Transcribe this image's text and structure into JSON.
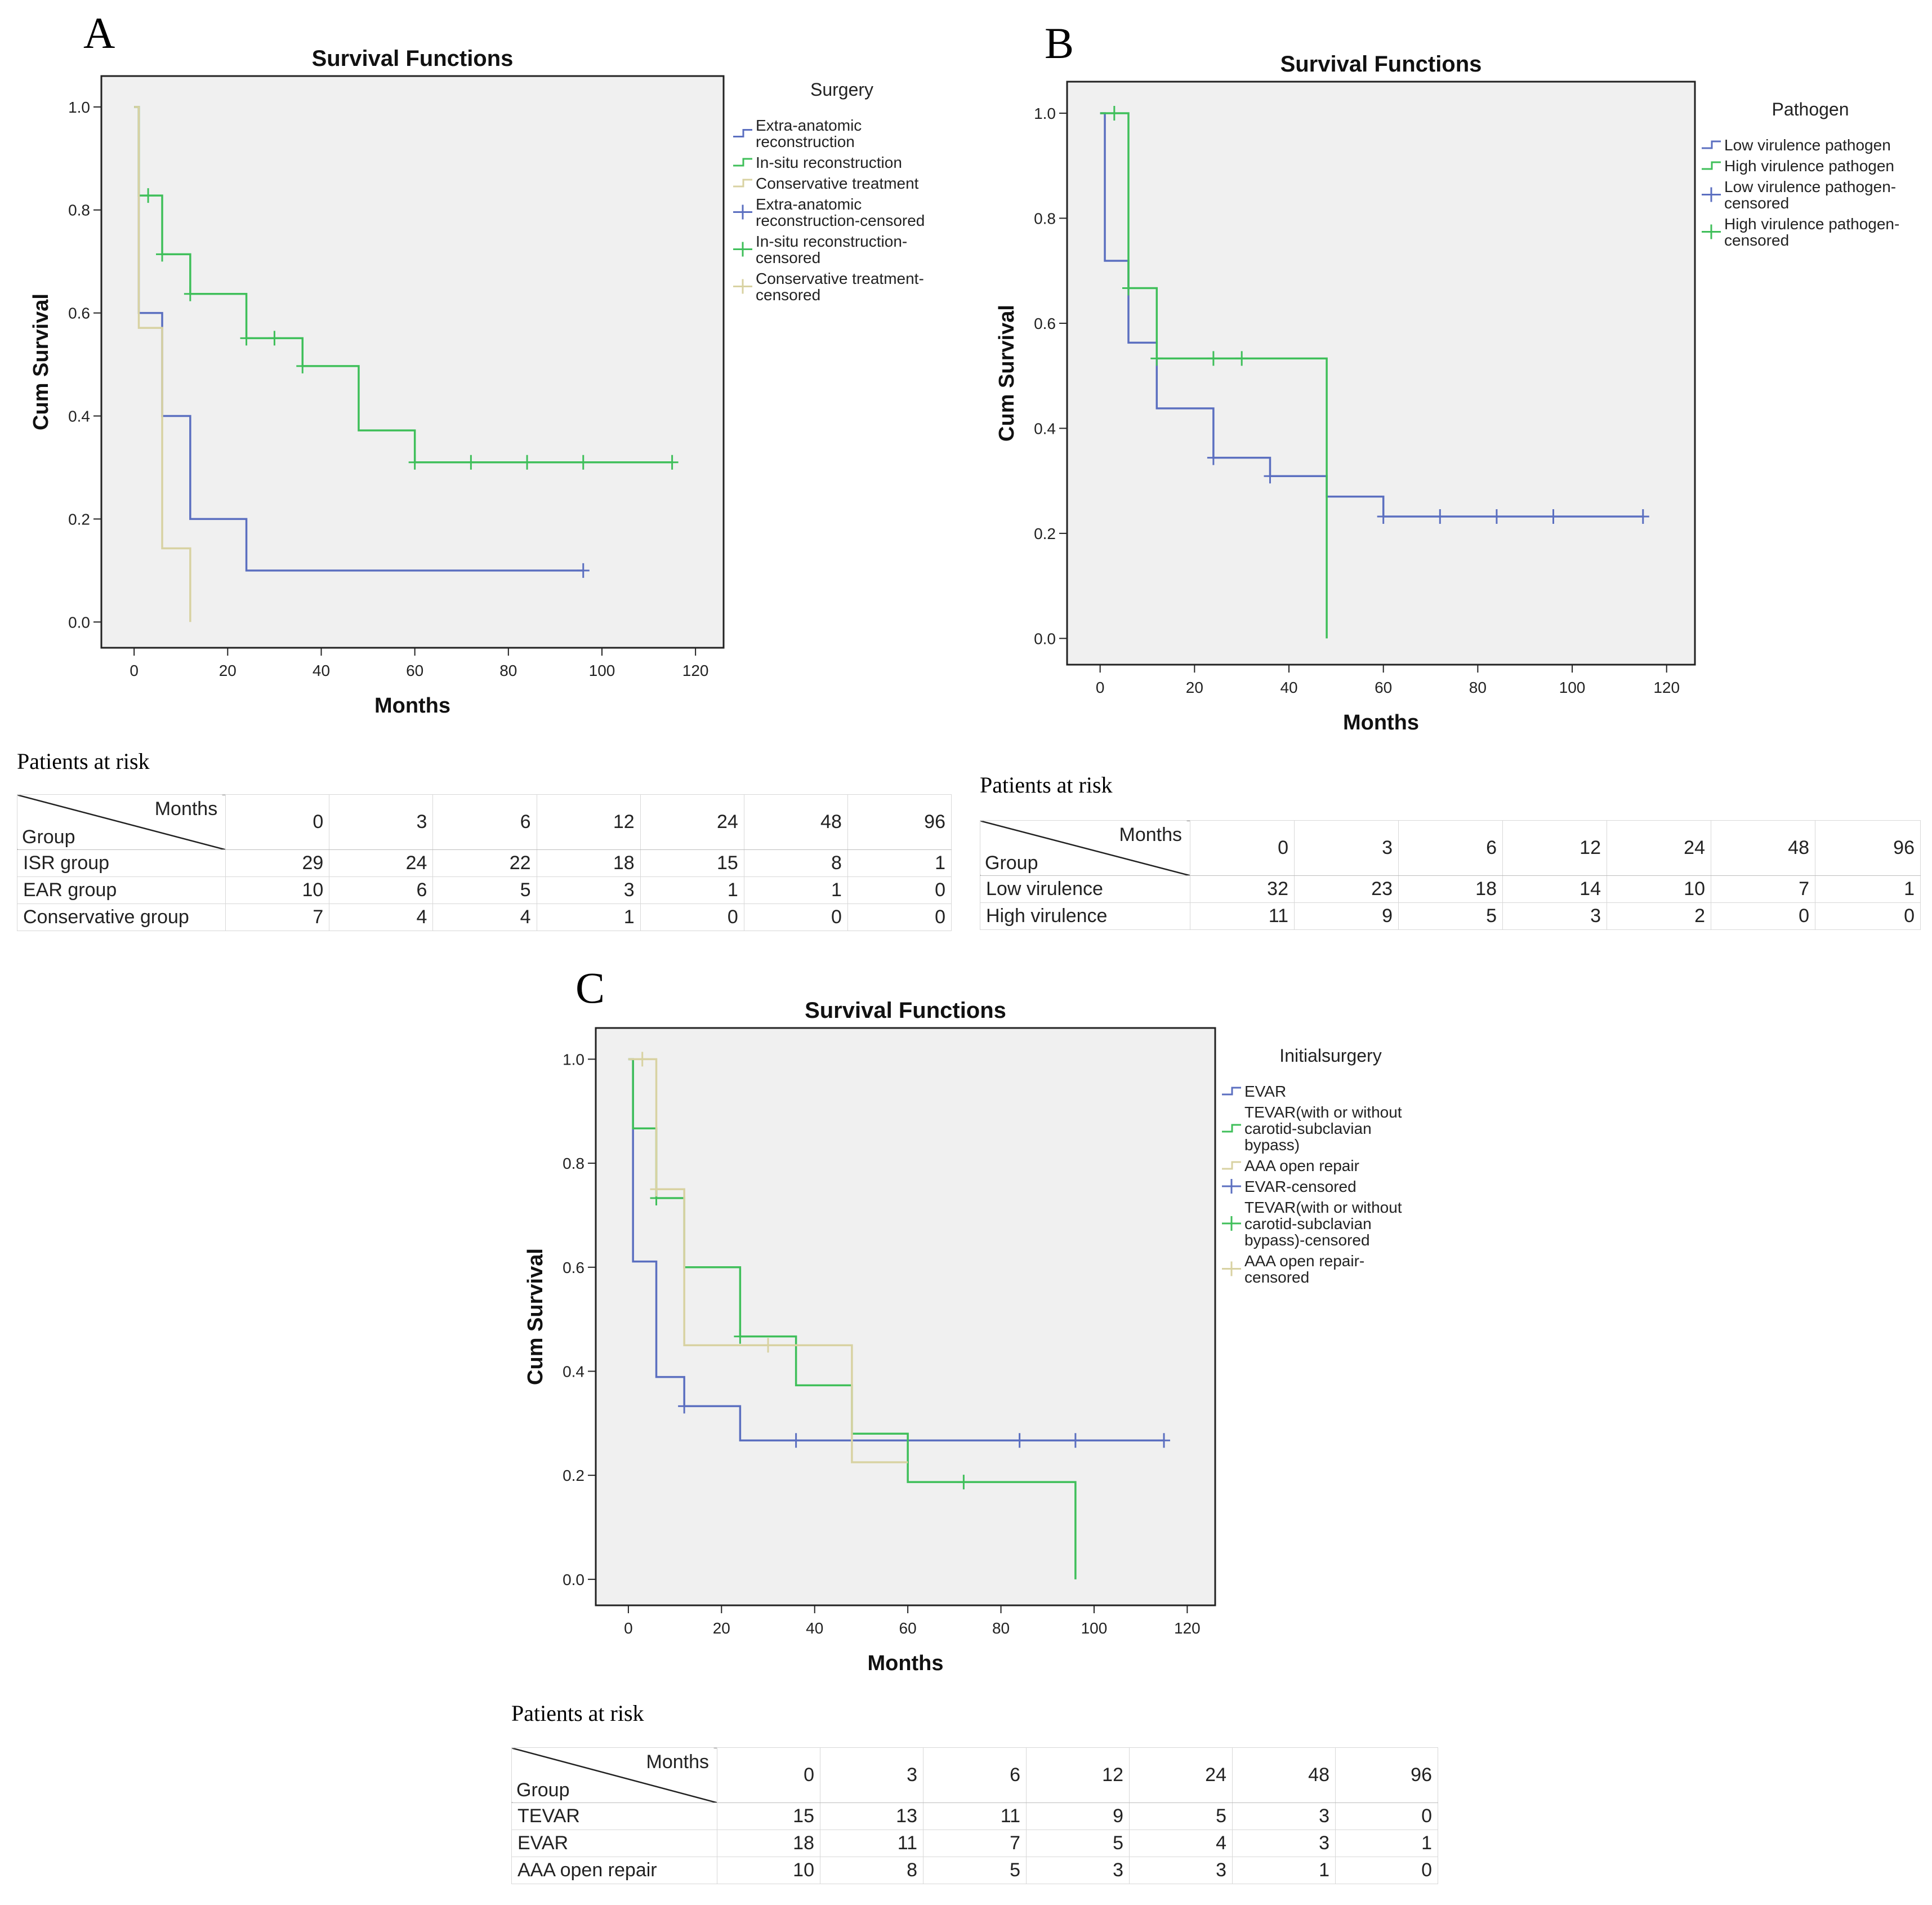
{
  "panels": [
    {
      "letter": "A",
      "risk_title": "Patients at risk",
      "risk_table": {
        "col_label": "Months",
        "row_label": "Group",
        "columns": [
          "0",
          "3",
          "6",
          "12",
          "24",
          "48",
          "96"
        ],
        "rows": [
          {
            "group": "ISR group",
            "values": [
              "29",
              "24",
              "22",
              "18",
              "15",
              "8",
              "1"
            ]
          },
          {
            "group": "EAR group",
            "values": [
              "10",
              "6",
              "5",
              "3",
              "1",
              "1",
              "0"
            ]
          },
          {
            "group": "Conservative group",
            "values": [
              "7",
              "4",
              "4",
              "1",
              "0",
              "0",
              "0"
            ]
          }
        ]
      }
    },
    {
      "letter": "B",
      "risk_title": "Patients at risk",
      "risk_table": {
        "col_label": "Months",
        "row_label": "Group",
        "columns": [
          "0",
          "3",
          "6",
          "12",
          "24",
          "48",
          "96"
        ],
        "rows": [
          {
            "group": "Low virulence",
            "values": [
              "32",
              "23",
              "18",
              "14",
              "10",
              "7",
              "1"
            ]
          },
          {
            "group": "High virulence",
            "values": [
              "11",
              "9",
              "5",
              "3",
              "2",
              "0",
              "0"
            ]
          }
        ]
      }
    },
    {
      "letter": "C",
      "risk_title": "Patients at risk",
      "risk_table": {
        "col_label": "Months",
        "row_label": "Group",
        "columns": [
          "0",
          "3",
          "6",
          "12",
          "24",
          "48",
          "96"
        ],
        "rows": [
          {
            "group": "TEVAR",
            "values": [
              "15",
              "13",
              "11",
              "9",
              "5",
              "3",
              "0"
            ]
          },
          {
            "group": "EVAR",
            "values": [
              "18",
              "11",
              "7",
              "5",
              "4",
              "3",
              "1"
            ]
          },
          {
            "group": "AAA open repair",
            "values": [
              "10",
              "8",
              "5",
              "3",
              "3",
              "1",
              "0"
            ]
          }
        ]
      }
    }
  ],
  "chart_data": [
    {
      "type": "line",
      "subtype": "kaplan-meier-step",
      "title": "Survival Functions",
      "xlabel": "Months",
      "ylabel": "Cum Survival",
      "xlim": [
        -7,
        126
      ],
      "ylim": [
        -0.05,
        1.06
      ],
      "xticks": [
        0,
        20,
        40,
        60,
        80,
        100,
        120
      ],
      "yticks": [
        0.0,
        0.2,
        0.4,
        0.6,
        0.8,
        1.0
      ],
      "legend_title": "Surgery",
      "legend": [
        {
          "label": [
            "Extra-anatomic",
            "reconstruction"
          ],
          "kind": "line",
          "series": 0
        },
        {
          "label": [
            "In-situ reconstruction"
          ],
          "kind": "line",
          "series": 1
        },
        {
          "label": [
            "Conservative treatment"
          ],
          "kind": "line",
          "series": 2
        },
        {
          "label": [
            "Extra-anatomic",
            "reconstruction-censored"
          ],
          "kind": "censor",
          "series": 0
        },
        {
          "label": [
            "In-situ reconstruction-",
            "censored"
          ],
          "kind": "censor",
          "series": 1
        },
        {
          "label": [
            "Conservative treatment-",
            "censored"
          ],
          "kind": "censor",
          "series": 2
        }
      ],
      "series": [
        {
          "name": "Extra-anatomic reconstruction",
          "color": "#5b6fc0",
          "steps": [
            [
              0,
              1.0
            ],
            [
              1,
              0.6
            ],
            [
              6,
              0.4
            ],
            [
              12,
              0.2
            ],
            [
              24,
              0.1
            ],
            [
              96,
              0.1
            ]
          ],
          "censored": [
            [
              96,
              0.1
            ]
          ]
        },
        {
          "name": "In-situ reconstruction",
          "color": "#3fbf5a",
          "steps": [
            [
              0,
              1.0
            ],
            [
              1,
              0.828
            ],
            [
              6,
              0.714
            ],
            [
              12,
              0.637
            ],
            [
              24,
              0.551
            ],
            [
              36,
              0.497
            ],
            [
              48,
              0.372
            ],
            [
              60,
              0.31
            ],
            [
              115,
              0.31
            ]
          ],
          "censored": [
            [
              3,
              0.828
            ],
            [
              6,
              0.714
            ],
            [
              12,
              0.637
            ],
            [
              24,
              0.551
            ],
            [
              30,
              0.551
            ],
            [
              36,
              0.497
            ],
            [
              60,
              0.31
            ],
            [
              72,
              0.31
            ],
            [
              84,
              0.31
            ],
            [
              96,
              0.31
            ],
            [
              115,
              0.31
            ]
          ]
        },
        {
          "name": "Conservative treatment",
          "color": "#d8d2a2",
          "steps": [
            [
              0,
              1.0
            ],
            [
              1,
              0.571
            ],
            [
              6,
              0.143
            ],
            [
              12,
              0.0
            ]
          ],
          "censored": []
        }
      ]
    },
    {
      "type": "line",
      "subtype": "kaplan-meier-step",
      "title": "Survival Functions",
      "xlabel": "Months",
      "ylabel": "Cum Survival",
      "xlim": [
        -7,
        126
      ],
      "ylim": [
        -0.05,
        1.06
      ],
      "xticks": [
        0,
        20,
        40,
        60,
        80,
        100,
        120
      ],
      "yticks": [
        0.0,
        0.2,
        0.4,
        0.6,
        0.8,
        1.0
      ],
      "legend_title": "Pathogen",
      "legend": [
        {
          "label": [
            "Low virulence pathogen"
          ],
          "kind": "line",
          "series": 0
        },
        {
          "label": [
            "High virulence pathogen"
          ],
          "kind": "line",
          "series": 1
        },
        {
          "label": [
            "Low virulence pathogen-",
            "censored"
          ],
          "kind": "censor",
          "series": 0
        },
        {
          "label": [
            "High virulence pathogen-",
            "censored"
          ],
          "kind": "censor",
          "series": 1
        }
      ],
      "series": [
        {
          "name": "Low virulence pathogen",
          "color": "#5b6fc0",
          "steps": [
            [
              0,
              1.0
            ],
            [
              1,
              0.719
            ],
            [
              6,
              0.563
            ],
            [
              12,
              0.438
            ],
            [
              24,
              0.344
            ],
            [
              36,
              0.309
            ],
            [
              48,
              0.27
            ],
            [
              60,
              0.232
            ],
            [
              115,
              0.232
            ]
          ],
          "censored": [
            [
              24,
              0.344
            ],
            [
              36,
              0.309
            ],
            [
              60,
              0.232
            ],
            [
              72,
              0.232
            ],
            [
              84,
              0.232
            ],
            [
              96,
              0.232
            ],
            [
              115,
              0.232
            ]
          ]
        },
        {
          "name": "High virulence pathogen",
          "color": "#3fbf5a",
          "steps": [
            [
              0,
              1.0
            ],
            [
              6,
              0.667
            ],
            [
              12,
              0.533
            ],
            [
              48,
              0.533
            ],
            [
              48,
              0.0
            ]
          ],
          "censored": [
            [
              3,
              1.0
            ],
            [
              6,
              0.667
            ],
            [
              12,
              0.533
            ],
            [
              24,
              0.533
            ],
            [
              30,
              0.533
            ]
          ]
        }
      ]
    },
    {
      "type": "line",
      "subtype": "kaplan-meier-step",
      "title": "Survival Functions",
      "xlabel": "Months",
      "ylabel": "Cum Survival",
      "xlim": [
        -7,
        126
      ],
      "ylim": [
        -0.05,
        1.06
      ],
      "xticks": [
        0,
        20,
        40,
        60,
        80,
        100,
        120
      ],
      "yticks": [
        0.0,
        0.2,
        0.4,
        0.6,
        0.8,
        1.0
      ],
      "legend_title": "Initialsurgery",
      "legend": [
        {
          "label": [
            "EVAR"
          ],
          "kind": "line",
          "series": 0
        },
        {
          "label": [
            "TEVAR(with or without",
            "carotid-subclavian",
            "bypass)"
          ],
          "kind": "line",
          "series": 1
        },
        {
          "label": [
            "AAA open repair"
          ],
          "kind": "line",
          "series": 2
        },
        {
          "label": [
            "EVAR-censored"
          ],
          "kind": "censor",
          "series": 0
        },
        {
          "label": [
            "TEVAR(with or without",
            "carotid-subclavian",
            "bypass)-censored"
          ],
          "kind": "censor",
          "series": 1
        },
        {
          "label": [
            "AAA open repair-",
            "censored"
          ],
          "kind": "censor",
          "series": 2
        }
      ],
      "series": [
        {
          "name": "EVAR",
          "color": "#5b6fc0",
          "steps": [
            [
              0,
              1.0
            ],
            [
              1,
              0.611
            ],
            [
              6,
              0.389
            ],
            [
              12,
              0.333
            ],
            [
              24,
              0.267
            ],
            [
              115,
              0.267
            ]
          ],
          "censored": [
            [
              12,
              0.333
            ],
            [
              36,
              0.267
            ],
            [
              84,
              0.267
            ],
            [
              96,
              0.267
            ],
            [
              115,
              0.267
            ]
          ]
        },
        {
          "name": "TEVAR(with or without carotid-subclavian bypass)",
          "color": "#3fbf5a",
          "steps": [
            [
              0,
              1.0
            ],
            [
              1,
              0.867
            ],
            [
              6,
              0.733
            ],
            [
              12,
              0.6
            ],
            [
              24,
              0.467
            ],
            [
              36,
              0.373
            ],
            [
              48,
              0.28
            ],
            [
              60,
              0.187
            ],
            [
              96,
              0.187
            ],
            [
              96,
              0.0
            ]
          ],
          "censored": [
            [
              6,
              0.733
            ],
            [
              24,
              0.467
            ],
            [
              72,
              0.187
            ]
          ]
        },
        {
          "name": "AAA open repair",
          "color": "#d8d2a2",
          "steps": [
            [
              0,
              1.0
            ],
            [
              6,
              0.75
            ],
            [
              12,
              0.45
            ],
            [
              48,
              0.225
            ],
            [
              60,
              0.225
            ]
          ],
          "censored": [
            [
              3,
              1.0
            ],
            [
              6,
              0.75
            ],
            [
              30,
              0.45
            ]
          ]
        }
      ]
    }
  ]
}
